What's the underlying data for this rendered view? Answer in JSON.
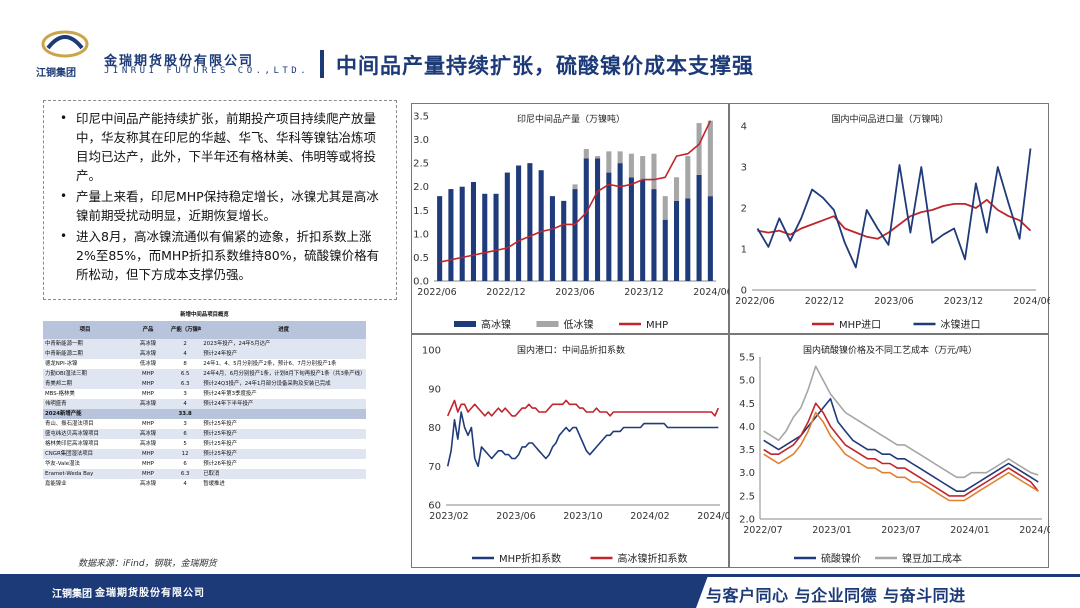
{
  "header": {
    "company_cn": "金瑞期货股份有限公司",
    "company_en": "JINRUI FUTURES CO.,LTD.",
    "group": "江铜集团",
    "title": "中间品产量持续扩张，硫酸镍价成本支撑强"
  },
  "bullets": [
    "印尼中间品产能持续扩张，前期投产项目持续爬产放量中，华友称其在印尼的华越、华飞、华科等镍钴冶炼项目均已达产，此外，下半年还有格林美、伟明等或将投产。",
    "产量上来看，印尼MHP保持稳定增长，冰镍尤其是高冰镍前期受扰动明显，近期恢复增长。",
    "进入8月，高冰镍流通似有偏紧的迹象，折扣系数上涨2%至85%，而MHP折扣系数维持80%，硫酸镍价格有所松动，但下方成本支撑仍强。"
  ],
  "table": {
    "title": "新增中间品项目概览",
    "headers": [
      "项目",
      "产品",
      "产能（万镍吨）",
      "进度"
    ],
    "rows": [
      {
        "project": "中青新能源一期",
        "product": "高冰镍",
        "capacity": "2",
        "note": "2023年投产，24年5月达产",
        "style": "row-b"
      },
      {
        "project": "中青新能源二期",
        "product": "高冰镍",
        "capacity": "4",
        "note": "预计24年投产",
        "style": "row-b"
      },
      {
        "project": "德龙NPI-冰镍",
        "product": "低冰镍",
        "capacity": "8",
        "note": "24年1、4、5月分别投产2条，预计6、7月分别投产1条",
        "style": "row-a"
      },
      {
        "project": "力勤OBI湿法三期",
        "product": "MHP",
        "capacity": "6.5",
        "note": "24年4月、6月分别投产1条，计划8月下旬再投产1条（共3条产线）",
        "style": "row-b"
      },
      {
        "project": "青美邦二期",
        "product": "MHP",
        "capacity": "6.3",
        "note": "预计24Q3投产，24年1月部分设备采购及安装已完成",
        "style": "row-b"
      },
      {
        "project": "MBS-格林美",
        "product": "MHP",
        "capacity": "3",
        "note": "预计24年第3季度投产",
        "style": "row-a"
      },
      {
        "project": "伟明盛青",
        "product": "高冰镍",
        "capacity": "4",
        "note": "预计24年下半年投产",
        "style": "row-b"
      },
      {
        "project": "2024新增产能",
        "product": "",
        "capacity": "33.8",
        "note": "",
        "style": "row-hl"
      },
      {
        "project": "青山、振石湿法项目",
        "product": "MHP",
        "capacity": "3",
        "note": "预计25年投产",
        "style": "row-a"
      },
      {
        "project": "盛屯纬达贝高冰镍项目",
        "product": "高冰镍",
        "capacity": "6",
        "note": "预计25年投产",
        "style": "row-b"
      },
      {
        "project": "格林美印尼高冰镍项目",
        "product": "高冰镍",
        "capacity": "5",
        "note": "预计25年投产",
        "style": "row-a"
      },
      {
        "project": "CNGR集团湿法项目",
        "product": "MHP",
        "capacity": "12",
        "note": "预计25年投产",
        "style": "row-b"
      },
      {
        "project": "华友-Vale湿法",
        "product": "MHP",
        "capacity": "6",
        "note": "预计26年投产",
        "style": "row-a"
      },
      {
        "project": "Eramet-Weda Bay",
        "product": "MHP",
        "capacity": "6.3",
        "note": "已取消",
        "style": "row-b"
      },
      {
        "project": "嘉能镍业",
        "product": "高冰镍",
        "capacity": "4",
        "note": "暂缓推进",
        "style": "row-a"
      }
    ]
  },
  "source": "数据来源：iFind，钢联，金瑞期货",
  "footer": {
    "group": "江铜集团",
    "company": "金瑞期货股份有限公司",
    "slogan": "与客户同心 与企业同德 与奋斗同进"
  },
  "chart_data": [
    {
      "type": "bar",
      "title": "印尼中间品产量（万镍吨）",
      "x_labels": [
        "2022/06",
        "2022/12",
        "2023/06",
        "2023/12",
        "2024/06"
      ],
      "ylim": [
        0,
        3.5
      ],
      "yticks": [
        0,
        0.5,
        1,
        1.5,
        2,
        2.5,
        3,
        3.5
      ],
      "categories": [
        "2022/06",
        "2022/07",
        "2022/08",
        "2022/09",
        "2022/10",
        "2022/11",
        "2022/12",
        "2023/01",
        "2023/02",
        "2023/03",
        "2023/04",
        "2023/05",
        "2023/06",
        "2023/07",
        "2023/08",
        "2023/09",
        "2023/10",
        "2023/11",
        "2023/12",
        "2024/01",
        "2024/02",
        "2024/03",
        "2024/04",
        "2024/05",
        "2024/06"
      ],
      "series": [
        {
          "name": "高冰镍",
          "kind": "bar",
          "color": "#1f3b7a",
          "values": [
            1.8,
            1.95,
            2.0,
            2.1,
            1.85,
            1.85,
            2.3,
            2.45,
            2.5,
            2.35,
            1.8,
            1.7,
            1.95,
            2.6,
            2.6,
            2.3,
            2.5,
            2.2,
            2.15,
            1.95,
            1.3,
            1.7,
            1.75,
            2.25,
            1.8
          ]
        },
        {
          "name": "低冰镍",
          "kind": "bar",
          "color": "#a6a6a6",
          "values": [
            0,
            0,
            0,
            0,
            0,
            0,
            0,
            0,
            0,
            0,
            0,
            0,
            0.1,
            0.2,
            0.05,
            0.45,
            0.25,
            0.5,
            0.5,
            0.75,
            0.5,
            0.5,
            0.9,
            1.1,
            1.6
          ]
        },
        {
          "name": "MHP",
          "kind": "line",
          "color": "#c0242c",
          "values": [
            0.4,
            0.45,
            0.5,
            0.55,
            0.6,
            0.65,
            0.7,
            0.85,
            0.95,
            1.05,
            1.1,
            1.2,
            1.2,
            1.45,
            1.9,
            2.05,
            2.0,
            2.05,
            2.15,
            2.15,
            2.2,
            2.65,
            2.7,
            2.9,
            3.4
          ]
        }
      ]
    },
    {
      "type": "line",
      "title": "国内中间品进口量（万镍吨）",
      "x_labels": [
        "2022/06",
        "2022/12",
        "2023/06",
        "2023/12",
        "2024/06"
      ],
      "ylim": [
        0,
        4
      ],
      "yticks": [
        0,
        1,
        2,
        3,
        4
      ],
      "categories": [
        "2022/06",
        "2022/07",
        "2022/08",
        "2022/09",
        "2022/10",
        "2022/11",
        "2022/12",
        "2023/01",
        "2023/02",
        "2023/03",
        "2023/04",
        "2023/05",
        "2023/06",
        "2023/07",
        "2023/08",
        "2023/09",
        "2023/10",
        "2023/11",
        "2023/12",
        "2024/01",
        "2024/02",
        "2024/03",
        "2024/04",
        "2024/05",
        "2024/06",
        "2024/07"
      ],
      "series": [
        {
          "name": "MHP进口",
          "color": "#c0242c",
          "values": [
            1.45,
            1.4,
            1.45,
            1.35,
            1.5,
            1.6,
            1.7,
            1.8,
            1.5,
            1.4,
            1.3,
            1.25,
            1.4,
            1.6,
            1.8,
            1.9,
            1.95,
            2.05,
            2.1,
            2.1,
            2.0,
            2.2,
            1.95,
            1.8,
            1.7,
            1.45
          ]
        },
        {
          "name": "冰镍进口",
          "color": "#1f3b7a",
          "values": [
            1.5,
            1.05,
            1.75,
            1.2,
            1.75,
            2.45,
            2.25,
            1.95,
            1.15,
            0.55,
            1.95,
            1.5,
            1.1,
            3.05,
            1.4,
            3.0,
            1.15,
            1.35,
            1.5,
            0.75,
            2.6,
            1.4,
            3.0,
            2.1,
            1.25,
            3.45
          ]
        }
      ]
    },
    {
      "type": "line",
      "title": "国内港口：中间品折扣系数",
      "x_labels": [
        "2023/02",
        "2023/06",
        "2023/10",
        "2024/02",
        "2024/06"
      ],
      "ylim": [
        60,
        100
      ],
      "yticks": [
        60,
        70,
        80,
        90,
        100
      ],
      "x": [
        0,
        1,
        2,
        3,
        4,
        5,
        6,
        7,
        8,
        9,
        10,
        11,
        12,
        13,
        14,
        15,
        16,
        17,
        18,
        19,
        20,
        21,
        22,
        23,
        24,
        25,
        26,
        27,
        28,
        29,
        30,
        31,
        32,
        33,
        34,
        35,
        36,
        37,
        38,
        39,
        40,
        41,
        42,
        43,
        44,
        45,
        46,
        47,
        48,
        49,
        50,
        51,
        52,
        53,
        54,
        55,
        56,
        57,
        58,
        59,
        60,
        61,
        62,
        63,
        64,
        65,
        66,
        67,
        68,
        69,
        70,
        71,
        72,
        73,
        74,
        75,
        76,
        77,
        78,
        79,
        80
      ],
      "series": [
        {
          "name": "MHP折扣系数",
          "color": "#1f3b7a",
          "values": [
            70,
            74,
            82,
            77,
            84,
            80,
            78,
            80,
            72,
            70,
            75,
            74,
            73,
            72,
            73,
            74,
            74,
            73,
            73,
            72,
            72,
            73,
            75,
            75,
            76,
            76,
            75,
            74,
            73,
            72,
            73,
            75,
            76,
            78,
            79,
            80,
            79,
            80,
            80,
            78,
            76,
            74,
            73,
            74,
            75,
            76,
            77,
            78,
            78,
            79,
            79,
            79,
            80,
            80,
            80,
            80,
            80,
            80,
            81,
            81,
            81,
            81,
            81,
            81,
            81,
            80,
            80,
            80,
            80,
            80,
            80,
            80,
            80,
            80,
            80,
            80,
            80,
            80,
            80,
            80,
            80
          ]
        },
        {
          "name": "高冰镍折扣系数",
          "color": "#c0242c",
          "values": [
            83,
            85,
            87,
            84,
            86,
            86,
            84,
            85,
            86,
            85,
            84,
            83,
            84,
            83,
            84,
            85,
            84,
            85,
            84,
            83,
            83,
            84,
            85,
            85,
            86,
            85,
            85,
            84,
            84,
            84,
            85,
            86,
            86,
            86,
            86,
            87,
            86,
            86,
            86,
            85,
            85,
            84,
            84,
            84,
            85,
            84,
            84,
            84,
            83,
            84,
            84,
            84,
            84,
            84,
            84,
            84,
            84,
            84,
            84,
            84,
            84,
            84,
            84,
            84,
            84,
            84,
            84,
            84,
            84,
            84,
            84,
            84,
            84,
            84,
            84,
            84,
            84,
            84,
            84,
            83,
            85
          ]
        }
      ]
    },
    {
      "type": "line",
      "title": "国内硫酸镍价格及不同工艺成本（万元/吨）",
      "x_labels": [
        "2022/07",
        "2023/01",
        "2023/07",
        "2024/01",
        "2024/07"
      ],
      "ylim": [
        2.0,
        5.5
      ],
      "yticks": [
        2.0,
        2.5,
        3.0,
        3.5,
        4.0,
        4.5,
        5.0,
        5.5
      ],
      "series": [
        {
          "name": "硫酸镍价",
          "color": "#1f3b7a",
          "values": [
            3.7,
            3.6,
            3.5,
            3.6,
            3.7,
            3.8,
            4.0,
            4.2,
            4.4,
            4.6,
            4.1,
            3.9,
            3.7,
            3.6,
            3.5,
            3.5,
            3.4,
            3.4,
            3.3,
            3.3,
            3.2,
            3.1,
            3.0,
            2.9,
            2.8,
            2.7,
            2.6,
            2.6,
            2.7,
            2.8,
            2.9,
            3.0,
            3.1,
            3.2,
            3.1,
            3.0,
            2.9,
            2.8
          ]
        },
        {
          "name": "镍豆加工成本",
          "color": "#a6a6a6",
          "values": [
            3.9,
            3.8,
            3.7,
            3.9,
            4.2,
            4.4,
            4.8,
            5.3,
            5.0,
            4.7,
            4.5,
            4.3,
            4.2,
            4.1,
            4.0,
            3.9,
            3.8,
            3.7,
            3.6,
            3.6,
            3.5,
            3.4,
            3.3,
            3.2,
            3.1,
            3.0,
            2.9,
            2.9,
            3.0,
            3.0,
            3.0,
            3.1,
            3.2,
            3.3,
            3.2,
            3.1,
            3.0,
            2.95
          ]
        },
        {
          "name": "",
          "color": "#c0242c",
          "values": [
            3.5,
            3.4,
            3.4,
            3.5,
            3.6,
            3.8,
            4.1,
            4.5,
            4.3,
            4.0,
            3.8,
            3.6,
            3.5,
            3.4,
            3.3,
            3.3,
            3.2,
            3.2,
            3.1,
            3.1,
            3.0,
            2.9,
            2.8,
            2.7,
            2.6,
            2.5,
            2.5,
            2.5,
            2.6,
            2.7,
            2.8,
            2.9,
            3.0,
            3.1,
            3.0,
            2.9,
            2.8,
            2.6
          ]
        },
        {
          "name": "",
          "color": "#e08030",
          "values": [
            3.4,
            3.3,
            3.2,
            3.3,
            3.4,
            3.6,
            3.9,
            4.3,
            4.1,
            3.8,
            3.6,
            3.4,
            3.3,
            3.2,
            3.1,
            3.1,
            3.0,
            3.0,
            2.9,
            2.9,
            2.8,
            2.8,
            2.7,
            2.6,
            2.5,
            2.4,
            2.4,
            2.4,
            2.5,
            2.6,
            2.7,
            2.8,
            2.9,
            3.0,
            2.9,
            2.8,
            2.7,
            2.6
          ]
        }
      ]
    }
  ]
}
